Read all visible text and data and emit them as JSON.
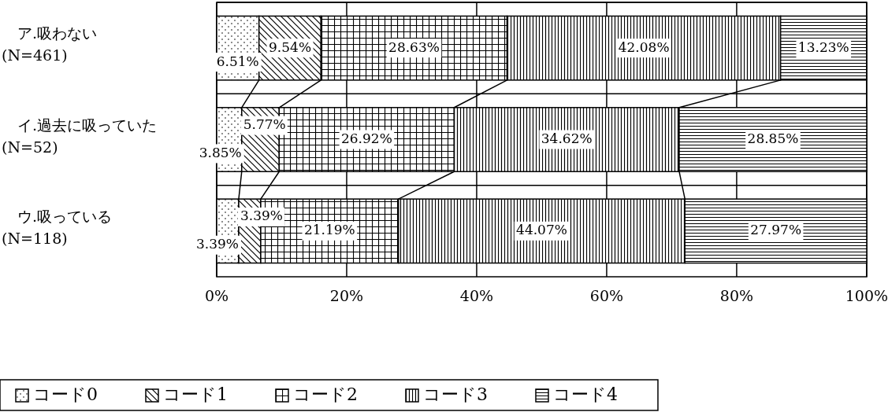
{
  "chart_data": {
    "type": "bar",
    "orientation": "horizontal",
    "stacked": true,
    "categories": [
      "ア.吸わない\n(N=461)",
      "イ.過去に吸っていた\n(N=52)",
      "ウ.吸っている\n(N=118)"
    ],
    "series": [
      {
        "name": "コード0",
        "color": "#000000",
        "values": [
          6.51,
          3.85,
          3.39
        ]
      },
      {
        "name": "コード1",
        "color": "#000000",
        "values": [
          9.54,
          5.77,
          3.39
        ]
      },
      {
        "name": "コード2",
        "color": "#000000",
        "values": [
          28.63,
          26.92,
          21.19
        ]
      },
      {
        "name": "コード3",
        "color": "#000000",
        "values": [
          42.08,
          34.62,
          44.07
        ]
      },
      {
        "name": "コード4",
        "color": "#000000",
        "values": [
          13.23,
          28.85,
          27.97
        ]
      }
    ],
    "value_labels": [
      [
        "6.51%",
        "3.85%",
        "3.39%"
      ],
      [
        "9.54%",
        "5.77%",
        "3.39%"
      ],
      [
        "28.63%",
        "26.92%",
        "21.19%"
      ],
      [
        "42.08%",
        "34.62%",
        "44.07%"
      ],
      [
        "13.23%",
        "28.85%",
        "27.97%"
      ]
    ],
    "xlim": [
      0,
      100.01
    ],
    "xticks": [
      {
        "value": 0,
        "label": "0%"
      },
      {
        "value": 20,
        "label": "20%"
      },
      {
        "value": 40,
        "label": "40%"
      },
      {
        "value": 60,
        "label": "60%"
      },
      {
        "value": 80,
        "label": "80%"
      },
      {
        "value": 100,
        "label": "100%"
      }
    ],
    "grid": "x",
    "legend": "bottom"
  }
}
